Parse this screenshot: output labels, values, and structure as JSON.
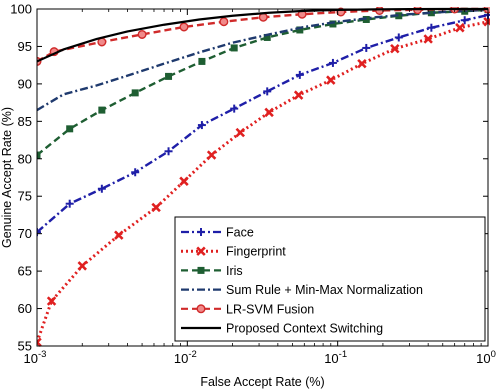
{
  "chart_data": {
    "type": "line",
    "title": "",
    "xlabel": "False Accept Rate (%)",
    "ylabel": "Genuine Accept Rate (%)",
    "x_scale": "log",
    "xlim": [
      0.001,
      1
    ],
    "ylim": [
      55,
      100
    ],
    "x_ticks": [
      {
        "value": 0.001,
        "base": "10",
        "exp": "-3"
      },
      {
        "value": 0.01,
        "base": "10",
        "exp": "-2"
      },
      {
        "value": 0.1,
        "base": "10",
        "exp": "-1"
      },
      {
        "value": 1,
        "base": "10",
        "exp": "0"
      }
    ],
    "y_ticks": [
      "55",
      "60",
      "65",
      "70",
      "75",
      "80",
      "85",
      "90",
      "95",
      "100"
    ],
    "grid": false,
    "legend_position": "bottom-right",
    "series": [
      {
        "name": "Face",
        "color": "#1f1fa8",
        "line": "dashdot",
        "marker": "plus",
        "x": [
          0.001,
          0.00165,
          0.0027,
          0.0045,
          0.0075,
          0.0125,
          0.0205,
          0.034,
          0.056,
          0.093,
          0.155,
          0.255,
          0.42,
          0.7,
          1.0
        ],
        "y": [
          70.2,
          74.0,
          76.0,
          78.2,
          81.0,
          84.5,
          86.7,
          89.0,
          91.2,
          92.8,
          94.8,
          96.2,
          97.5,
          98.5,
          99.2
        ]
      },
      {
        "name": "Fingerprint",
        "color": "#e02020",
        "line": "dotted",
        "marker": "x",
        "x": [
          0.001,
          0.00125,
          0.002,
          0.0035,
          0.0062,
          0.0095,
          0.0145,
          0.0225,
          0.035,
          0.055,
          0.09,
          0.145,
          0.24,
          0.4,
          0.65,
          1.0
        ],
        "y": [
          55.5,
          61.0,
          65.7,
          69.8,
          73.5,
          77.0,
          80.5,
          83.5,
          86.2,
          88.5,
          90.5,
          92.7,
          94.7,
          96.0,
          97.5,
          98.3
        ]
      },
      {
        "name": "Iris",
        "color": "#1e5e32",
        "line": "dashed",
        "marker": "square",
        "x": [
          0.001,
          0.00165,
          0.0027,
          0.0045,
          0.0075,
          0.0125,
          0.0205,
          0.034,
          0.056,
          0.093,
          0.155,
          0.255,
          0.42,
          0.7,
          1.0
        ],
        "y": [
          80.5,
          84.0,
          86.5,
          88.8,
          91.0,
          93.0,
          94.8,
          96.2,
          97.2,
          98.0,
          98.6,
          99.1,
          99.5,
          99.7,
          99.9
        ]
      },
      {
        "name": "Sum Rule + Min-Max Normalization",
        "color": "#1f3a6e",
        "line": "dashdot",
        "marker": "none",
        "x": [
          0.001,
          0.0015,
          0.0025,
          0.004,
          0.007,
          0.012,
          0.02,
          0.035,
          0.06,
          0.1,
          0.18,
          0.3,
          0.5,
          0.8,
          1.0
        ],
        "y": [
          86.5,
          88.6,
          89.8,
          91.1,
          92.7,
          94.2,
          95.5,
          96.6,
          97.6,
          98.3,
          98.9,
          99.3,
          99.6,
          99.8,
          99.9
        ]
      },
      {
        "name": "LR-SVM Fusion",
        "color": "#d02a2a",
        "line": "dashed",
        "marker": "circle",
        "x": [
          0.001,
          0.0013,
          0.0027,
          0.005,
          0.0095,
          0.0175,
          0.032,
          0.058,
          0.105,
          0.19,
          0.34,
          0.6,
          1.0
        ],
        "y": [
          93.0,
          94.3,
          95.6,
          96.6,
          97.6,
          98.3,
          98.9,
          99.3,
          99.6,
          99.8,
          99.9,
          100.0,
          100.0
        ]
      },
      {
        "name": "Proposed Context Switching",
        "color": "#000000",
        "line": "solid",
        "marker": "none",
        "x": [
          0.001,
          0.0015,
          0.0025,
          0.004,
          0.007,
          0.012,
          0.02,
          0.035,
          0.06,
          0.1,
          0.18,
          0.3,
          0.5,
          0.8,
          1.0
        ],
        "y": [
          93.0,
          94.6,
          96.0,
          97.0,
          97.9,
          98.6,
          99.1,
          99.5,
          99.75,
          99.88,
          99.95,
          99.98,
          100.0,
          100.0,
          100.0
        ]
      }
    ]
  }
}
